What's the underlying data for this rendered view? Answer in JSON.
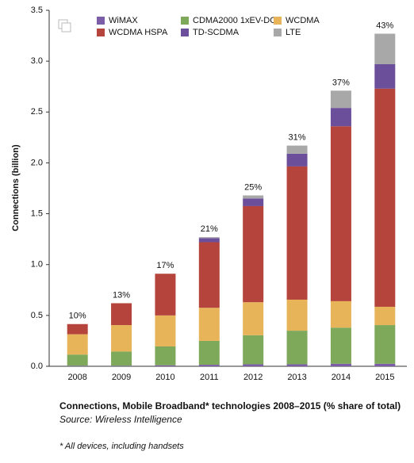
{
  "chart_data": {
    "type": "stacked_bar",
    "title": "Connections, Mobile Broadband* technologies 2008–2015 (% share of total)",
    "source": "Source: Wireless Intelligence",
    "footnote": "* All devices, including handsets",
    "y_label": "Connections (billion)",
    "categories": [
      "2008",
      "2009",
      "2010",
      "2011",
      "2012",
      "2013",
      "2014",
      "2015"
    ],
    "total_share_labels": [
      "10%",
      "13%",
      "17%",
      "21%",
      "25%",
      "31%",
      "37%",
      "43%"
    ],
    "series": [
      {
        "name": "WiMAX",
        "color": "#7b5ea7",
        "values": [
          0.005,
          0.005,
          0.01,
          0.015,
          0.02,
          0.02,
          0.025,
          0.025
        ]
      },
      {
        "name": "CDMA2000 1xEV-DO",
        "color": "#7ea85a",
        "values": [
          0.11,
          0.14,
          0.185,
          0.235,
          0.285,
          0.33,
          0.355,
          0.38
        ]
      },
      {
        "name": "WCDMA",
        "color": "#e8b45a",
        "values": [
          0.2,
          0.26,
          0.305,
          0.325,
          0.325,
          0.305,
          0.26,
          0.18
        ]
      },
      {
        "name": "WCDMA HSPA",
        "color": "#b5453c",
        "values": [
          0.1,
          0.215,
          0.41,
          0.645,
          0.945,
          1.31,
          1.72,
          2.145
        ]
      },
      {
        "name": "TD-SCDMA",
        "color": "#6c4f9a",
        "values": [
          0,
          0,
          0,
          0.04,
          0.075,
          0.125,
          0.18,
          0.24
        ]
      },
      {
        "name": "LTE",
        "color": "#a8a8a8",
        "values": [
          0,
          0,
          0,
          0.01,
          0.03,
          0.08,
          0.17,
          0.3
        ]
      }
    ],
    "ylim": [
      0,
      3.5
    ],
    "yticks": [
      {
        "value": 0,
        "label": "0.0"
      },
      0.5,
      {
        "value": 1,
        "label": "1.0"
      },
      1.5,
      {
        "value": 2,
        "label": "2.0"
      },
      2.5,
      {
        "value": 3,
        "label": "3.0"
      },
      3.5
    ]
  }
}
